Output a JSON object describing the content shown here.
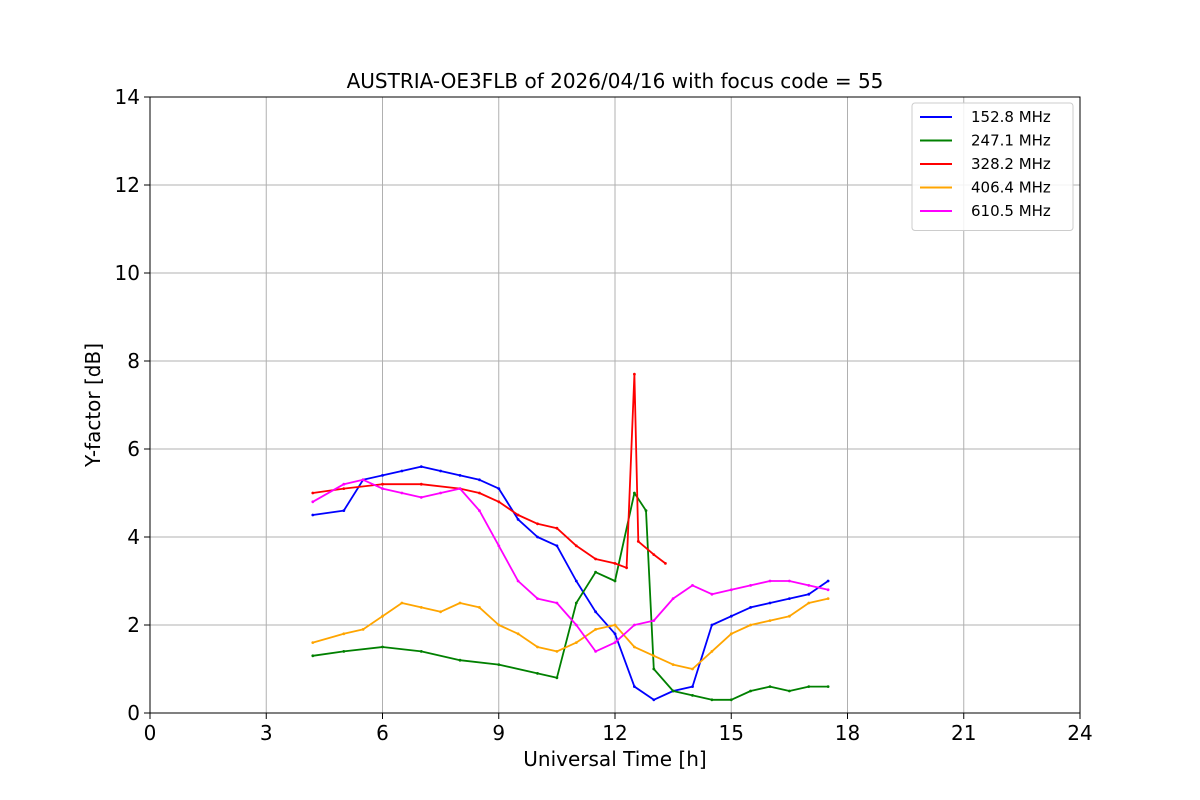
{
  "chart_data": {
    "type": "line",
    "title": "AUSTRIA-OE3FLB of 2026/04/16 with focus code = 55",
    "xlabel": "Universal Time [h]",
    "ylabel": "Y-factor [dB]",
    "xlim": [
      0,
      24
    ],
    "ylim": [
      0,
      14
    ],
    "xticks": [
      0,
      3,
      6,
      9,
      12,
      15,
      18,
      21,
      24
    ],
    "yticks": [
      0,
      2,
      4,
      6,
      8,
      10,
      12,
      14
    ],
    "grid": true,
    "legend_position": "top-right",
    "series": [
      {
        "name": "152.8 MHz",
        "color": "#0000ff",
        "x": [
          4.2,
          5.0,
          5.5,
          6.0,
          6.5,
          7.0,
          7.5,
          8.0,
          8.5,
          9.0,
          9.5,
          10.0,
          10.5,
          11.0,
          11.5,
          12.0,
          12.5,
          13.0,
          13.5,
          14.0,
          14.5,
          15.0,
          15.5,
          16.0,
          16.5,
          17.0,
          17.5
        ],
        "values": [
          4.5,
          4.6,
          5.3,
          5.4,
          5.5,
          5.6,
          5.5,
          5.4,
          5.3,
          5.1,
          4.4,
          4.0,
          3.8,
          3.0,
          2.3,
          1.8,
          0.6,
          0.3,
          0.5,
          0.6,
          2.0,
          2.2,
          2.4,
          2.5,
          2.6,
          2.7,
          3.0
        ]
      },
      {
        "name": "247.1 MHz",
        "color": "#008000",
        "x": [
          4.2,
          5.0,
          6.0,
          7.0,
          8.0,
          9.0,
          10.0,
          10.5,
          11.0,
          11.5,
          12.0,
          12.5,
          12.8,
          13.0,
          13.5,
          14.0,
          14.5,
          15.0,
          15.5,
          16.0,
          16.5,
          17.0,
          17.5
        ],
        "values": [
          1.3,
          1.4,
          1.5,
          1.4,
          1.2,
          1.1,
          0.9,
          0.8,
          2.5,
          3.2,
          3.0,
          5.0,
          4.6,
          1.0,
          0.5,
          0.4,
          0.3,
          0.3,
          0.5,
          0.6,
          0.5,
          0.6,
          0.6
        ]
      },
      {
        "name": "328.2 MHz",
        "color": "#ff0000",
        "x": [
          4.2,
          5.0,
          6.0,
          7.0,
          8.0,
          8.5,
          9.0,
          9.5,
          10.0,
          10.5,
          11.0,
          11.5,
          12.0,
          12.3,
          12.5,
          12.6,
          13.0,
          13.3
        ],
        "values": [
          5.0,
          5.1,
          5.2,
          5.2,
          5.1,
          5.0,
          4.8,
          4.5,
          4.3,
          4.2,
          3.8,
          3.5,
          3.4,
          3.3,
          7.7,
          3.9,
          3.6,
          3.4
        ]
      },
      {
        "name": "406.4 MHz",
        "color": "#ffa500",
        "x": [
          4.2,
          5.0,
          5.5,
          6.0,
          6.5,
          7.0,
          7.5,
          8.0,
          8.5,
          9.0,
          9.5,
          10.0,
          10.5,
          11.0,
          11.5,
          12.0,
          12.5,
          13.0,
          13.5,
          14.0,
          14.5,
          15.0,
          15.5,
          16.0,
          16.5,
          17.0,
          17.5
        ],
        "values": [
          1.6,
          1.8,
          1.9,
          2.2,
          2.5,
          2.4,
          2.3,
          2.5,
          2.4,
          2.0,
          1.8,
          1.5,
          1.4,
          1.6,
          1.9,
          2.0,
          1.5,
          1.3,
          1.1,
          1.0,
          1.4,
          1.8,
          2.0,
          2.1,
          2.2,
          2.5,
          2.6
        ]
      },
      {
        "name": "610.5 MHz",
        "color": "#ff00ff",
        "x": [
          4.2,
          5.0,
          5.5,
          6.0,
          6.5,
          7.0,
          7.5,
          8.0,
          8.5,
          9.0,
          9.5,
          10.0,
          10.5,
          11.0,
          11.5,
          12.0,
          12.5,
          13.0,
          13.5,
          14.0,
          14.5,
          15.0,
          15.5,
          16.0,
          16.5,
          17.0,
          17.5
        ],
        "values": [
          4.8,
          5.2,
          5.3,
          5.1,
          5.0,
          4.9,
          5.0,
          5.1,
          4.6,
          3.8,
          3.0,
          2.6,
          2.5,
          2.0,
          1.4,
          1.6,
          2.0,
          2.1,
          2.6,
          2.9,
          2.7,
          2.8,
          2.9,
          3.0,
          3.0,
          2.9,
          2.8
        ]
      }
    ]
  }
}
